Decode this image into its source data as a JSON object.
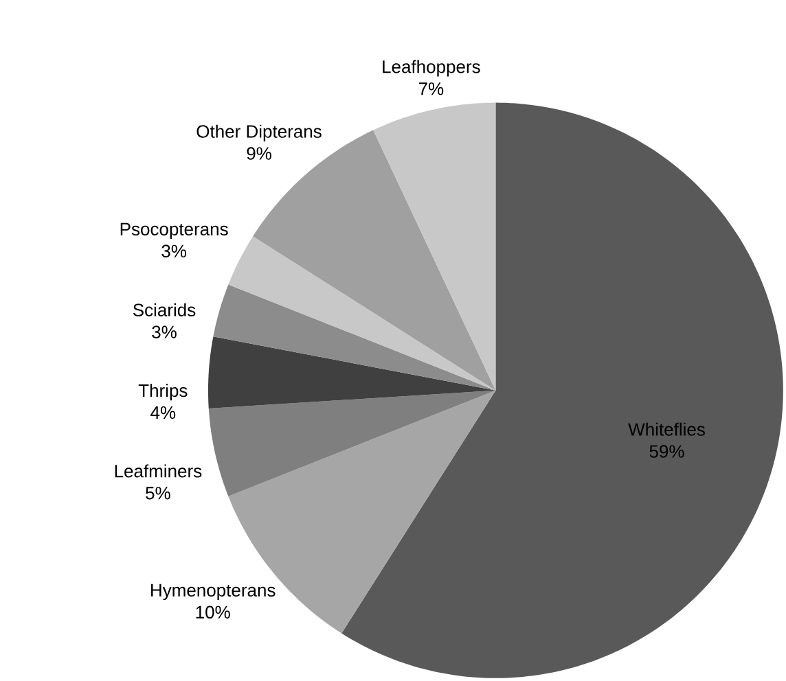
{
  "chart_data": {
    "type": "pie",
    "categories": [
      "Whiteflies",
      "Hymenopterans",
      "Leafminers",
      "Thrips",
      "Sciarids",
      "Psocopterans",
      "Other Dipterans",
      "Leafhoppers"
    ],
    "values": [
      59,
      10,
      5,
      4,
      3,
      3,
      9,
      7
    ],
    "value_labels": [
      "59%",
      "10%",
      "5%",
      "4%",
      "3%",
      "3%",
      "9%",
      "7%"
    ],
    "colors": [
      "#595959",
      "#a6a6a6",
      "#7f7f7f",
      "#404040",
      "#8c8c8c",
      "#c8c8c8",
      "#a0a0a0",
      "#c8c8c8"
    ]
  }
}
